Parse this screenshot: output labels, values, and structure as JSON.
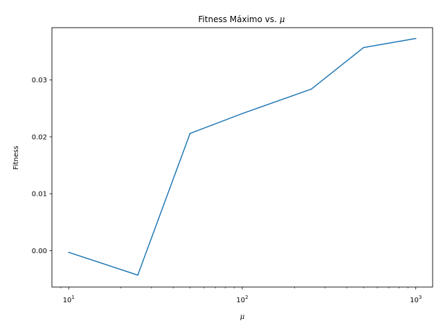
{
  "chart_data": {
    "type": "line",
    "title": "Fitness Máximo vs.",
    "title_symbol": "μ",
    "xlabel": "μ",
    "ylabel": "Fitness",
    "xscale": "log",
    "xlim": [
      8.0,
      1250.0
    ],
    "ylim": [
      -0.0064,
      0.0392
    ],
    "grid": false,
    "line_color": "#1f77b4",
    "x": [
      10,
      25,
      50,
      100,
      250,
      500,
      1000
    ],
    "series": [
      {
        "values": [
          -0.0003,
          -0.0043,
          0.0206,
          0.0241,
          0.0284,
          0.0357,
          0.0373
        ]
      }
    ],
    "x_ticks": [
      {
        "value": 10,
        "base": "10",
        "exp": "1"
      },
      {
        "value": 100,
        "base": "10",
        "exp": "2"
      },
      {
        "value": 1000,
        "base": "10",
        "exp": "3"
      }
    ],
    "y_ticks": [
      {
        "value": 0.0,
        "label": "0.00"
      },
      {
        "value": 0.01,
        "label": "0.01"
      },
      {
        "value": 0.02,
        "label": "0.02"
      },
      {
        "value": 0.03,
        "label": "0.03"
      }
    ]
  }
}
